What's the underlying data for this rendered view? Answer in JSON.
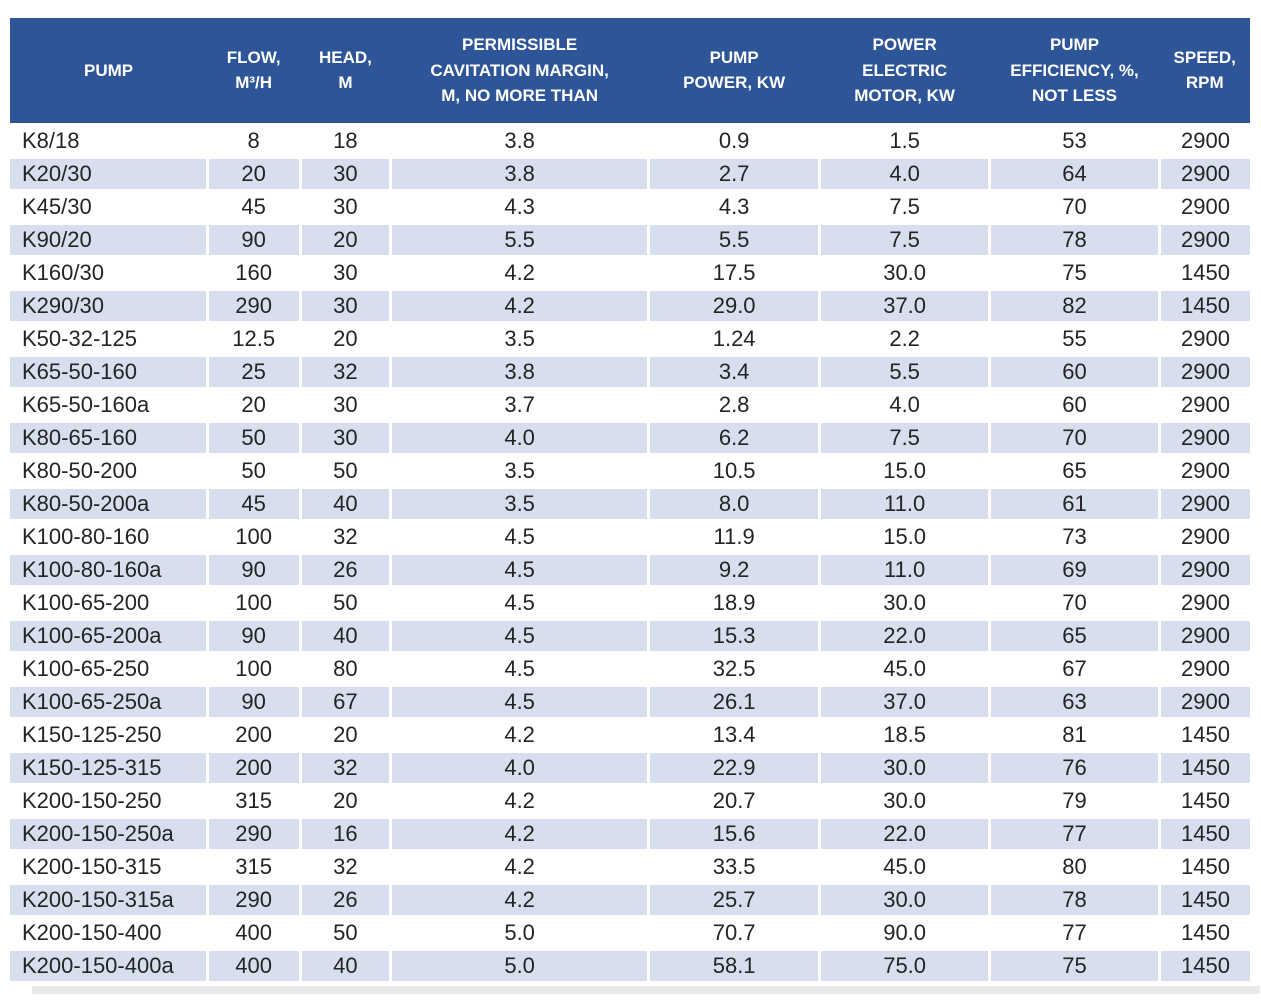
{
  "chart_data": {
    "type": "table",
    "title": "Pump specifications table",
    "columns": [
      "PUMP",
      "FLOW,\nM³/H",
      "HEAD,\nM",
      "PERMISSIBLE\nCAVITATION MARGIN,\nM, NO MORE THAN",
      "PUMP\nPOWER, KW",
      "POWER\nELECTRIC\nMOTOR, KW",
      "PUMP\nEFFICIENCY, %,\nNOT LESS",
      "SPEED,\nRPM"
    ],
    "rows": [
      [
        "K8/18",
        "8",
        "18",
        "3.8",
        "0.9",
        "1.5",
        "53",
        "2900"
      ],
      [
        "K20/30",
        "20",
        "30",
        "3.8",
        "2.7",
        "4.0",
        "64",
        "2900"
      ],
      [
        "K45/30",
        "45",
        "30",
        "4.3",
        "4.3",
        "7.5",
        "70",
        "2900"
      ],
      [
        "K90/20",
        "90",
        "20",
        "5.5",
        "5.5",
        "7.5",
        "78",
        "2900"
      ],
      [
        "K160/30",
        "160",
        "30",
        "4.2",
        "17.5",
        "30.0",
        "75",
        "1450"
      ],
      [
        "K290/30",
        "290",
        "30",
        "4.2",
        "29.0",
        "37.0",
        "82",
        "1450"
      ],
      [
        "K50-32-125",
        "12.5",
        "20",
        "3.5",
        "1.24",
        "2.2",
        "55",
        "2900"
      ],
      [
        "K65-50-160",
        "25",
        "32",
        "3.8",
        "3.4",
        "5.5",
        "60",
        "2900"
      ],
      [
        "K65-50-160a",
        "20",
        "30",
        "3.7",
        "2.8",
        "4.0",
        "60",
        "2900"
      ],
      [
        "K80-65-160",
        "50",
        "30",
        "4.0",
        "6.2",
        "7.5",
        "70",
        "2900"
      ],
      [
        "K80-50-200",
        "50",
        "50",
        "3.5",
        "10.5",
        "15.0",
        "65",
        "2900"
      ],
      [
        "K80-50-200a",
        "45",
        "40",
        "3.5",
        "8.0",
        "11.0",
        "61",
        "2900"
      ],
      [
        "K100-80-160",
        "100",
        "32",
        "4.5",
        "11.9",
        "15.0",
        "73",
        "2900"
      ],
      [
        "K100-80-160a",
        "90",
        "26",
        "4.5",
        "9.2",
        "11.0",
        "69",
        "2900"
      ],
      [
        "K100-65-200",
        "100",
        "50",
        "4.5",
        "18.9",
        "30.0",
        "70",
        "2900"
      ],
      [
        "K100-65-200a",
        "90",
        "40",
        "4.5",
        "15.3",
        "22.0",
        "65",
        "2900"
      ],
      [
        "K100-65-250",
        "100",
        "80",
        "4.5",
        "32.5",
        "45.0",
        "67",
        "2900"
      ],
      [
        "K100-65-250a",
        "90",
        "67",
        "4.5",
        "26.1",
        "37.0",
        "63",
        "2900"
      ],
      [
        "K150-125-250",
        "200",
        "20",
        "4.2",
        "13.4",
        "18.5",
        "81",
        "1450"
      ],
      [
        "K150-125-315",
        "200",
        "32",
        "4.0",
        "22.9",
        "30.0",
        "76",
        "1450"
      ],
      [
        "K200-150-250",
        "315",
        "20",
        "4.2",
        "20.7",
        "30.0",
        "79",
        "1450"
      ],
      [
        "K200-150-250a",
        "290",
        "16",
        "4.2",
        "15.6",
        "22.0",
        "77",
        "1450"
      ],
      [
        "K200-150-315",
        "315",
        "32",
        "4.2",
        "33.5",
        "45.0",
        "80",
        "1450"
      ],
      [
        "K200-150-315a",
        "290",
        "26",
        "4.2",
        "25.7",
        "30.0",
        "78",
        "1450"
      ],
      [
        "K200-150-400",
        "400",
        "50",
        "5.0",
        "70.7",
        "90.0",
        "77",
        "1450"
      ],
      [
        "K200-150-400a",
        "400",
        "40",
        "5.0",
        "58.1",
        "75.0",
        "75",
        "1450"
      ]
    ],
    "layout_hints": {
      "striped": true,
      "stripe_pattern": "even rows shaded",
      "first_column_align": "left",
      "other_columns_align": "center"
    }
  },
  "colors": {
    "header_bg": "#2e5597",
    "header_text": "#ffffff",
    "stripe_bg": "#d7deee",
    "row_bg": "#ffffff",
    "body_text": "#242424",
    "cropped_row_bg": "#e9e9e9"
  }
}
